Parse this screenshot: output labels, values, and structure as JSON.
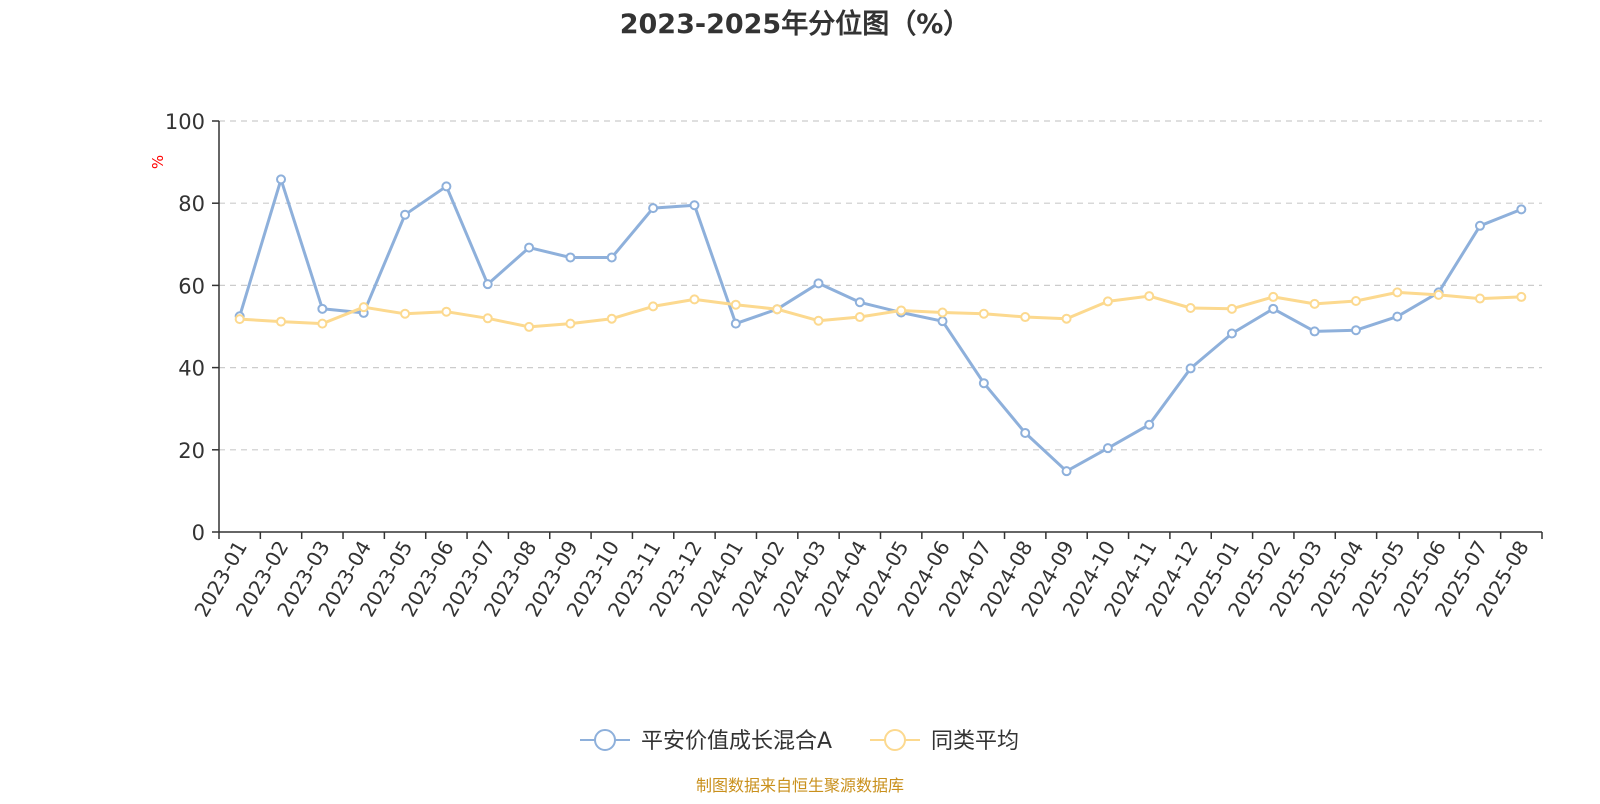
{
  "chart_data": {
    "type": "line",
    "title": "2023-2025年分位图（%）",
    "ylabel": "%",
    "xlabel": "",
    "ylim": [
      0,
      100
    ],
    "yticks": [
      0,
      20,
      40,
      60,
      80,
      100
    ],
    "grid": true,
    "legend_position": "bottom-center",
    "categories": [
      "2023-01",
      "2023-02",
      "2023-03",
      "2023-04",
      "2023-05",
      "2023-06",
      "2023-07",
      "2023-08",
      "2023-09",
      "2023-10",
      "2023-11",
      "2023-12",
      "2024-01",
      "2024-02",
      "2024-03",
      "2024-04",
      "2024-05",
      "2024-06",
      "2024-07",
      "2024-08",
      "2024-09",
      "2024-10",
      "2024-11",
      "2024-12",
      "2025-01",
      "2025-02",
      "2025-03",
      "2025-04",
      "2025-05",
      "2025-06",
      "2025-07",
      "2025-08"
    ],
    "series": [
      {
        "name": "平安价值成长混合A",
        "color": "#8eb0db",
        "values": [
          52.5,
          85.8,
          54.3,
          53.3,
          77.2,
          84.1,
          60.3,
          69.2,
          66.8,
          66.8,
          78.8,
          79.5,
          50.7,
          54.2,
          60.5,
          55.9,
          53.4,
          51.3,
          36.2,
          24.1,
          14.8,
          20.4,
          26.1,
          39.8,
          48.3,
          54.3,
          48.8,
          49.1,
          52.4,
          58.3,
          74.5,
          78.5
        ]
      },
      {
        "name": "同类平均",
        "color": "#fcd98f",
        "values": [
          51.8,
          51.2,
          50.7,
          54.7,
          53.1,
          53.6,
          52.0,
          49.9,
          50.7,
          51.9,
          54.9,
          56.6,
          55.3,
          54.2,
          51.4,
          52.3,
          53.9,
          53.4,
          53.1,
          52.3,
          51.9,
          56.1,
          57.4,
          54.5,
          54.3,
          57.2,
          55.5,
          56.2,
          58.3,
          57.7,
          56.8,
          57.2
        ]
      }
    ],
    "source_note": "制图数据来自恒生聚源数据库",
    "colors": {
      "title": "#333333",
      "axis": "#333333",
      "grid": "#cccccc",
      "ylabel": "#ff0000",
      "source_note": "#c9901c"
    }
  }
}
